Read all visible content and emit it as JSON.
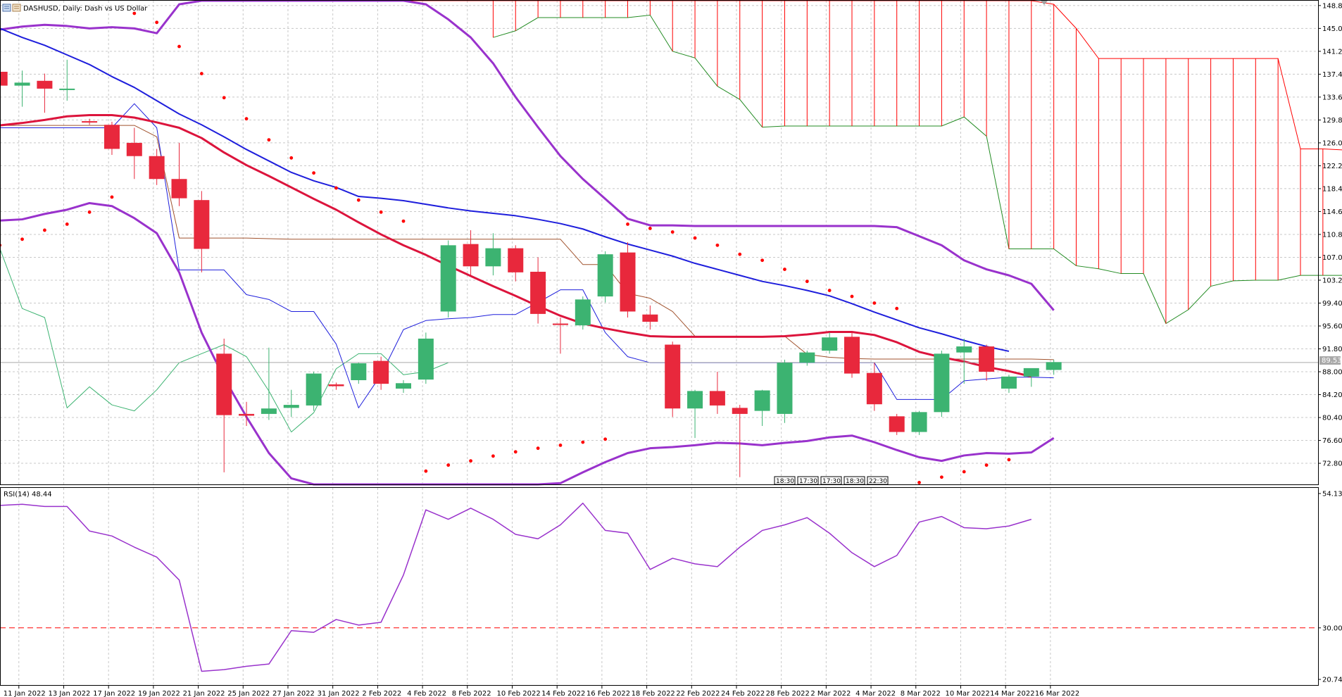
{
  "header": {
    "symbol_title": "DASHUSD, Daily:  Dash vs US Dollar"
  },
  "rsi_header": "RSI(14) 48.44",
  "current_price_label": "89.53",
  "time_boxes": [
    "18:30",
    "17:30",
    "17:30",
    "18:30",
    "22:30"
  ],
  "colors": {
    "bull": "#3cb371",
    "bear": "#e8283c",
    "ma_slow": "#1e1edc",
    "ma_fast": "#dc143c",
    "envelope": "#9932cc",
    "cloud": "#ff0000",
    "chikou": "#3cb371",
    "kijun": "#a0522d",
    "tenkan": "#1e1edc",
    "sar": "#ff0000",
    "rsi": "#9932cc",
    "rsi_level": "#ff0000"
  },
  "chart_data": [
    {
      "type": "candlestick",
      "title": "DASHUSD, Daily:  Dash vs US Dollar",
      "x_tick_labels": [
        "11 Jan 2022",
        "13 Jan 2022",
        "17 Jan 2022",
        "19 Jan 2022",
        "21 Jan 2022",
        "25 Jan 2022",
        "27 Jan 2022",
        "31 Jan 2022",
        "2 Feb 2022",
        "4 Feb 2022",
        "8 Feb 2022",
        "10 Feb 2022",
        "14 Feb 2022",
        "16 Feb 2022",
        "18 Feb 2022",
        "22 Feb 2022",
        "24 Feb 2022",
        "28 Feb 2022",
        "2 Mar 2022",
        "4 Mar 2022",
        "8 Mar 2022",
        "10 Mar 2022",
        "14 Mar 2022",
        "16 Mar 2022"
      ],
      "y_tick_labels": [
        "148.80",
        "145.00",
        "141.20",
        "137.40",
        "133.60",
        "129.80",
        "126.00",
        "122.20",
        "118.40",
        "114.60",
        "110.80",
        "107.00",
        "103.20",
        "99.40",
        "95.60",
        "91.80",
        "88.00",
        "84.20",
        "80.40",
        "76.60",
        "72.80"
      ],
      "ylim": [
        69.3,
        149.6
      ],
      "current_price": 89.53,
      "candles": [
        {
          "o": 137.8,
          "h": 138.5,
          "c": 135.5,
          "l": 134.0
        },
        {
          "o": 135.5,
          "h": 138.0,
          "c": 136.0,
          "l": 132.0
        },
        {
          "o": 136.3,
          "h": 137.5,
          "c": 135.0,
          "l": 131.0
        },
        {
          "o": 135.0,
          "h": 139.8,
          "c": 135.0,
          "l": 133.0
        },
        {
          "o": 129.6,
          "h": 130.0,
          "c": 129.5,
          "l": 129.0
        },
        {
          "o": 129.0,
          "h": 129.5,
          "c": 125.0,
          "l": 124.0
        },
        {
          "o": 126.0,
          "h": 128.5,
          "c": 123.8,
          "l": 120.0
        },
        {
          "o": 123.8,
          "h": 125.0,
          "c": 120.0,
          "l": 119.0
        },
        {
          "o": 120.0,
          "h": 126.0,
          "c": 116.8,
          "l": 115.5
        },
        {
          "o": 116.5,
          "h": 118.0,
          "c": 108.4,
          "l": 104.5
        },
        {
          "o": 91.0,
          "h": 93.5,
          "c": 80.8,
          "l": 71.3
        },
        {
          "o": 81.0,
          "h": 83.0,
          "c": 80.7,
          "l": 79.0
        },
        {
          "o": 81.0,
          "h": 92.0,
          "c": 81.9,
          "l": 80.0
        },
        {
          "o": 82.0,
          "h": 85.0,
          "c": 82.5,
          "l": 80.5
        },
        {
          "o": 82.4,
          "h": 88.0,
          "c": 87.7,
          "l": 81.5
        },
        {
          "o": 85.9,
          "h": 86.2,
          "c": 85.6,
          "l": 85.0
        },
        {
          "o": 86.6,
          "h": 89.5,
          "c": 89.4,
          "l": 86.0
        },
        {
          "o": 89.8,
          "h": 90.5,
          "c": 86.0,
          "l": 85.0
        },
        {
          "o": 85.2,
          "h": 86.6,
          "c": 86.1,
          "l": 84.5
        },
        {
          "o": 86.7,
          "h": 94.5,
          "c": 93.5,
          "l": 86.0
        },
        {
          "o": 98.0,
          "h": 109.8,
          "c": 109.0,
          "l": 97.0
        },
        {
          "o": 109.2,
          "h": 111.5,
          "c": 105.5,
          "l": 104.0
        },
        {
          "o": 105.5,
          "h": 111.0,
          "c": 108.5,
          "l": 104.0
        },
        {
          "o": 108.5,
          "h": 109.0,
          "c": 104.5,
          "l": 103.0
        },
        {
          "o": 104.6,
          "h": 107.0,
          "c": 97.6,
          "l": 96.0
        },
        {
          "o": 96.0,
          "h": 97.0,
          "c": 95.9,
          "l": 91.0
        },
        {
          "o": 95.7,
          "h": 100.5,
          "c": 100.0,
          "l": 95.0
        },
        {
          "o": 100.5,
          "h": 108.0,
          "c": 107.5,
          "l": 99.5
        },
        {
          "o": 107.8,
          "h": 109.5,
          "c": 98.0,
          "l": 97.0
        },
        {
          "o": 97.5,
          "h": 99.0,
          "c": 96.3,
          "l": 95.0
        },
        {
          "o": 92.5,
          "h": 93.0,
          "c": 81.9,
          "l": 80.5
        },
        {
          "o": 81.9,
          "h": 85.0,
          "c": 84.8,
          "l": 77.0
        },
        {
          "o": 84.8,
          "h": 88.0,
          "c": 82.4,
          "l": 81.0
        },
        {
          "o": 82.0,
          "h": 82.5,
          "c": 81.0,
          "l": 70.5
        },
        {
          "o": 81.5,
          "h": 85.0,
          "c": 84.9,
          "l": 79.0
        },
        {
          "o": 81.0,
          "h": 90.0,
          "c": 89.5,
          "l": 79.5
        },
        {
          "o": 89.5,
          "h": 91.5,
          "c": 91.2,
          "l": 89.0
        },
        {
          "o": 91.5,
          "h": 94.5,
          "c": 93.7,
          "l": 91.0
        },
        {
          "o": 93.8,
          "h": 94.5,
          "c": 87.7,
          "l": 87.0
        },
        {
          "o": 87.8,
          "h": 89.5,
          "c": 82.6,
          "l": 81.5
        },
        {
          "o": 80.6,
          "h": 81.0,
          "c": 78.0,
          "l": 77.5
        },
        {
          "o": 78.0,
          "h": 81.5,
          "c": 81.3,
          "l": 77.5
        },
        {
          "o": 81.3,
          "h": 91.5,
          "c": 91.0,
          "l": 80.5
        },
        {
          "o": 91.2,
          "h": 93.5,
          "c": 92.2,
          "l": 86.0
        },
        {
          "o": 92.2,
          "h": 92.5,
          "c": 88.0,
          "l": 86.5
        },
        {
          "o": 85.2,
          "h": 87.5,
          "c": 87.2,
          "l": 84.5
        },
        {
          "o": 87.2,
          "h": 88.5,
          "c": 88.6,
          "l": 85.5
        },
        {
          "o": 88.3,
          "h": 90.0,
          "c": 89.6,
          "l": 87.5
        }
      ],
      "ma_slow": [
        145.0,
        143.5,
        142.2,
        140.6,
        139.0,
        137.0,
        135.2,
        133.0,
        130.8,
        129.0,
        127.0,
        124.9,
        123.0,
        121.1,
        119.7,
        118.6,
        117.1,
        116.8,
        116.4,
        115.8,
        115.2,
        114.7,
        114.3,
        113.9,
        113.3,
        112.6,
        111.7,
        110.4,
        109.2,
        108.2,
        107.2,
        106.0,
        105.0,
        104.0,
        103.0,
        102.3,
        101.5,
        100.6,
        99.3,
        97.9,
        96.6,
        95.3,
        94.3,
        93.2,
        92.2,
        91.4
      ],
      "ma_fast": [
        128.9,
        129.3,
        129.8,
        130.4,
        130.6,
        130.6,
        130.2,
        129.4,
        128.5,
        126.8,
        124.4,
        122.3,
        120.5,
        118.6,
        116.7,
        114.9,
        112.8,
        110.8,
        109.0,
        107.4,
        105.6,
        103.9,
        102.2,
        100.6,
        98.9,
        97.3,
        96.0,
        95.2,
        94.5,
        93.9,
        93.8,
        93.8,
        93.8,
        93.8,
        93.8,
        93.9,
        94.2,
        94.6,
        94.6,
        94.1,
        92.9,
        91.3,
        90.4,
        89.7,
        88.8,
        88.1,
        87.2
      ],
      "env_upper": [
        144.8,
        145.3,
        145.6,
        145.4,
        145.0,
        145.2,
        145.0,
        144.2,
        149.0,
        150.0,
        150.0,
        150.0,
        150.0,
        150.0,
        150.0,
        150.0,
        150.0,
        150.0,
        150.0,
        149.0,
        146.5,
        143.5,
        139.2,
        133.6,
        128.6,
        123.8,
        120.0,
        116.7,
        113.4,
        112.3,
        112.3,
        112.2,
        112.2,
        112.2,
        112.2,
        112.2,
        112.2,
        112.2,
        112.2,
        112.2,
        112.0,
        110.5,
        109.0,
        106.5,
        105.0,
        104.0,
        102.6,
        98.2
      ],
      "env_lower": [
        113.1,
        113.3,
        114.2,
        114.9,
        116.0,
        115.5,
        113.5,
        111.0,
        104.5,
        94.5,
        87.0,
        80.5,
        74.5,
        70.3,
        66.8,
        63.5,
        61.5,
        60.0,
        59.0,
        58.0,
        57.0,
        57.5,
        58.0,
        59.0,
        62.0,
        69.5,
        71.3,
        73.0,
        74.5,
        75.3,
        75.5,
        75.8,
        76.2,
        76.1,
        75.8,
        76.2,
        76.5,
        77.1,
        77.4,
        76.3,
        75.0,
        73.8,
        73.2,
        74.1,
        74.5,
        74.4,
        74.6,
        77.0
      ],
      "tenkan": [
        128.5,
        128.5,
        128.5,
        128.5,
        128.5,
        128.5,
        132.5,
        128.5,
        104.9,
        104.9,
        104.9,
        100.8,
        100.0,
        98.0,
        98.0,
        92.6,
        82.0,
        87.5,
        95.0,
        96.5,
        96.8,
        97.0,
        97.5,
        97.5,
        99.5,
        101.6,
        101.6,
        94.5,
        90.5,
        89.5,
        89.5,
        89.5,
        89.5,
        89.5,
        89.5,
        89.5,
        89.5,
        89.5,
        89.5,
        89.5,
        83.4,
        83.4,
        83.4,
        86.5,
        86.8,
        87.1,
        87.1,
        87.0
      ],
      "kijun": [
        128.9,
        128.9,
        128.9,
        128.9,
        128.9,
        128.9,
        128.9,
        127.0,
        110.2,
        110.2,
        110.2,
        110.2,
        110.1,
        110.0,
        110.0,
        110.0,
        110.0,
        110.0,
        110.0,
        110.0,
        110.0,
        110.0,
        110.0,
        110.0,
        110.0,
        110.0,
        105.8,
        105.8,
        101.0,
        100.2,
        98.0,
        93.9,
        93.9,
        93.9,
        93.9,
        93.9,
        90.9,
        90.4,
        90.2,
        90.1,
        90.1,
        90.1,
        90.1,
        90.1,
        90.1,
        90.1,
        90.1,
        90.0
      ],
      "chikou": [
        108.5,
        98.5,
        97.0,
        82.0,
        85.5,
        82.5,
        81.5,
        85.0,
        89.5,
        91.0,
        92.5,
        90.5,
        84.8,
        78.0,
        81.2,
        88.5,
        91.0,
        91.0,
        87.5,
        88.0,
        89.5
      ],
      "cloud_upper": [
        170.0,
        170.0,
        170.0,
        170.0,
        170.0,
        170.0,
        170.0,
        170.0,
        170.0,
        170.0,
        170.0,
        170.0,
        170.0,
        170.0,
        170.0,
        170.0,
        170.0,
        170.0,
        170.0,
        170.0,
        170.0,
        170.0,
        170.0,
        170.0,
        170.0,
        170.0,
        170.0,
        170.0,
        170.0,
        170.0,
        170.0,
        170.0,
        170.0,
        170.0,
        170.0,
        170.0,
        149.0,
        145.0,
        140.0,
        140.0,
        140.0,
        140.0,
        140.0,
        140.0,
        140.0,
        140.0,
        140.0,
        125.0,
        125.0,
        124.8,
        122.0,
        122.0,
        109.8,
        109.8,
        109.8,
        109.8,
        109.8,
        109.8,
        109.8,
        109.5,
        109.2
      ],
      "cloud_lower": [
        null,
        null,
        null,
        null,
        null,
        null,
        null,
        null,
        null,
        null,
        null,
        143.5,
        144.6,
        146.8,
        146.8,
        146.8,
        146.8,
        146.8,
        147.2,
        141.2,
        140.1,
        135.4,
        133.2,
        128.6,
        128.8,
        128.8,
        128.8,
        128.8,
        128.8,
        128.8,
        128.8,
        128.8,
        130.3,
        127.1,
        108.4,
        108.4,
        108.4,
        105.6,
        105.1,
        104.3,
        104.3,
        96.0,
        98.3,
        102.2,
        103.1,
        103.2,
        103.2,
        104.0,
        104.0,
        104.0,
        102.5,
        104.0,
        104.0,
        98.6,
        97.3,
        96.5,
        94.0
      ],
      "sar": [
        109.0,
        110.0,
        111.5,
        112.5,
        114.5,
        117.0,
        147.5,
        146.0,
        142.0,
        137.5,
        133.5,
        130.0,
        126.5,
        123.5,
        121.0,
        118.5,
        116.5,
        114.5,
        113.0,
        71.5,
        72.5,
        73.2,
        74.0,
        74.7,
        75.3,
        75.8,
        76.3,
        76.8,
        112.5,
        111.8,
        111.2,
        110.2,
        109.0,
        107.5,
        106.5,
        105.0,
        103.0,
        101.5,
        100.5,
        99.4,
        98.5,
        69.6,
        70.5,
        71.4,
        72.5,
        73.4
      ],
      "sar_index_offset": 0
    },
    {
      "type": "line",
      "title": "RSI(14) 48.44",
      "ylim": [
        20.74,
        54.13
      ],
      "y_tick_labels": [
        "54.13",
        "30.00",
        "20.74"
      ],
      "level": 30.0,
      "series": [
        {
          "values": [
            52.0,
            52.2,
            51.8,
            51.8,
            47.4,
            46.5,
            44.5,
            42.7,
            38.6,
            22.2,
            22.5,
            23.1,
            23.5,
            29.5,
            29.2,
            31.5,
            30.5,
            31.0,
            39.5,
            51.2,
            49.5,
            51.5,
            49.5,
            46.8,
            46.0,
            48.5,
            52.4,
            47.5,
            47.0,
            40.5,
            42.5,
            41.5,
            41.0,
            44.5,
            47.5,
            48.5,
            49.8,
            47.0,
            43.5,
            41.0,
            43.0,
            49.0,
            50.0,
            48.0,
            47.8,
            48.3,
            49.5
          ]
        }
      ]
    }
  ]
}
